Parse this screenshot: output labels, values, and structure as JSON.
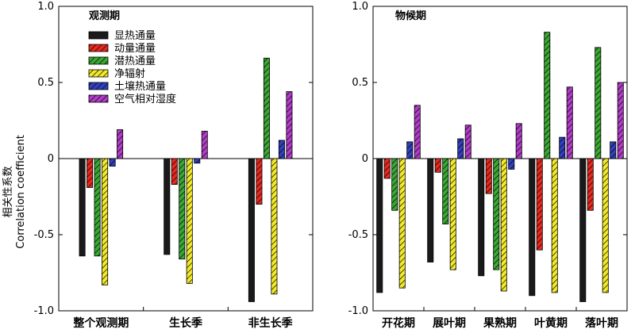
{
  "figure": {
    "ylabel_cn": "相关性系数",
    "ylabel_en": "Correlation coefficient"
  },
  "chart_data": [
    {
      "type": "bar",
      "title": "观测期",
      "ylim": [
        -1.0,
        1.0
      ],
      "yticks": [
        1.0,
        0.5,
        0,
        -0.5,
        -1.0
      ],
      "ytick_labels": [
        "1.0",
        "0.5",
        "0",
        "-0.5",
        "-1.0"
      ],
      "categories": [
        "整个观测期",
        "生长季",
        "非生长季"
      ],
      "legend_position": "top-left",
      "series": [
        {
          "name": "显热通量",
          "color": "#1a1a1a",
          "pattern": "solid",
          "values": [
            -0.64,
            -0.63,
            -0.94
          ]
        },
        {
          "name": "动量通量",
          "color": "#e8281e",
          "pattern": "hatch",
          "values": [
            -0.19,
            -0.17,
            -0.3
          ]
        },
        {
          "name": "潜热通量",
          "color": "#3aa832",
          "pattern": "hatch",
          "values": [
            -0.64,
            -0.66,
            0.66
          ]
        },
        {
          "name": "净辐射",
          "color": "#f2ea2a",
          "pattern": "hatch",
          "values": [
            -0.83,
            -0.82,
            -0.89
          ]
        },
        {
          "name": "土壤热通量",
          "color": "#3040c0",
          "pattern": "hatch",
          "values": [
            -0.05,
            -0.03,
            0.12
          ]
        },
        {
          "name": "空气相对湿度",
          "color": "#b23cc8",
          "pattern": "hatch",
          "values": [
            0.19,
            0.18,
            0.44
          ]
        }
      ]
    },
    {
      "type": "bar",
      "title": "物候期",
      "ylim": [
        -1.0,
        1.0
      ],
      "yticks": [
        1.0,
        0.5,
        0,
        -0.5,
        -1.0
      ],
      "ytick_labels": [
        "1.0",
        "0.5",
        "0",
        "-0.5",
        "-1.0"
      ],
      "categories": [
        "开花期",
        "展叶期",
        "果熟期",
        "叶黄期",
        "落叶期"
      ],
      "series": [
        {
          "name": "显热通量",
          "color": "#1a1a1a",
          "pattern": "solid",
          "values": [
            -0.88,
            -0.68,
            -0.77,
            -0.9,
            -0.94
          ]
        },
        {
          "name": "动量通量",
          "color": "#e8281e",
          "pattern": "hatch",
          "values": [
            -0.13,
            -0.09,
            -0.23,
            -0.6,
            -0.34
          ]
        },
        {
          "name": "潜热通量",
          "color": "#3aa832",
          "pattern": "hatch",
          "values": [
            -0.34,
            -0.43,
            -0.73,
            0.83,
            0.73
          ]
        },
        {
          "name": "净辐射",
          "color": "#f2ea2a",
          "pattern": "hatch",
          "values": [
            -0.85,
            -0.73,
            -0.87,
            -0.88,
            -0.88
          ]
        },
        {
          "name": "土壤热通量",
          "color": "#3040c0",
          "pattern": "hatch",
          "values": [
            0.11,
            0.13,
            -0.07,
            0.14,
            0.11
          ]
        },
        {
          "name": "空气相对湿度",
          "color": "#b23cc8",
          "pattern": "hatch",
          "values": [
            0.35,
            0.22,
            0.23,
            0.47,
            0.5
          ]
        }
      ]
    }
  ]
}
